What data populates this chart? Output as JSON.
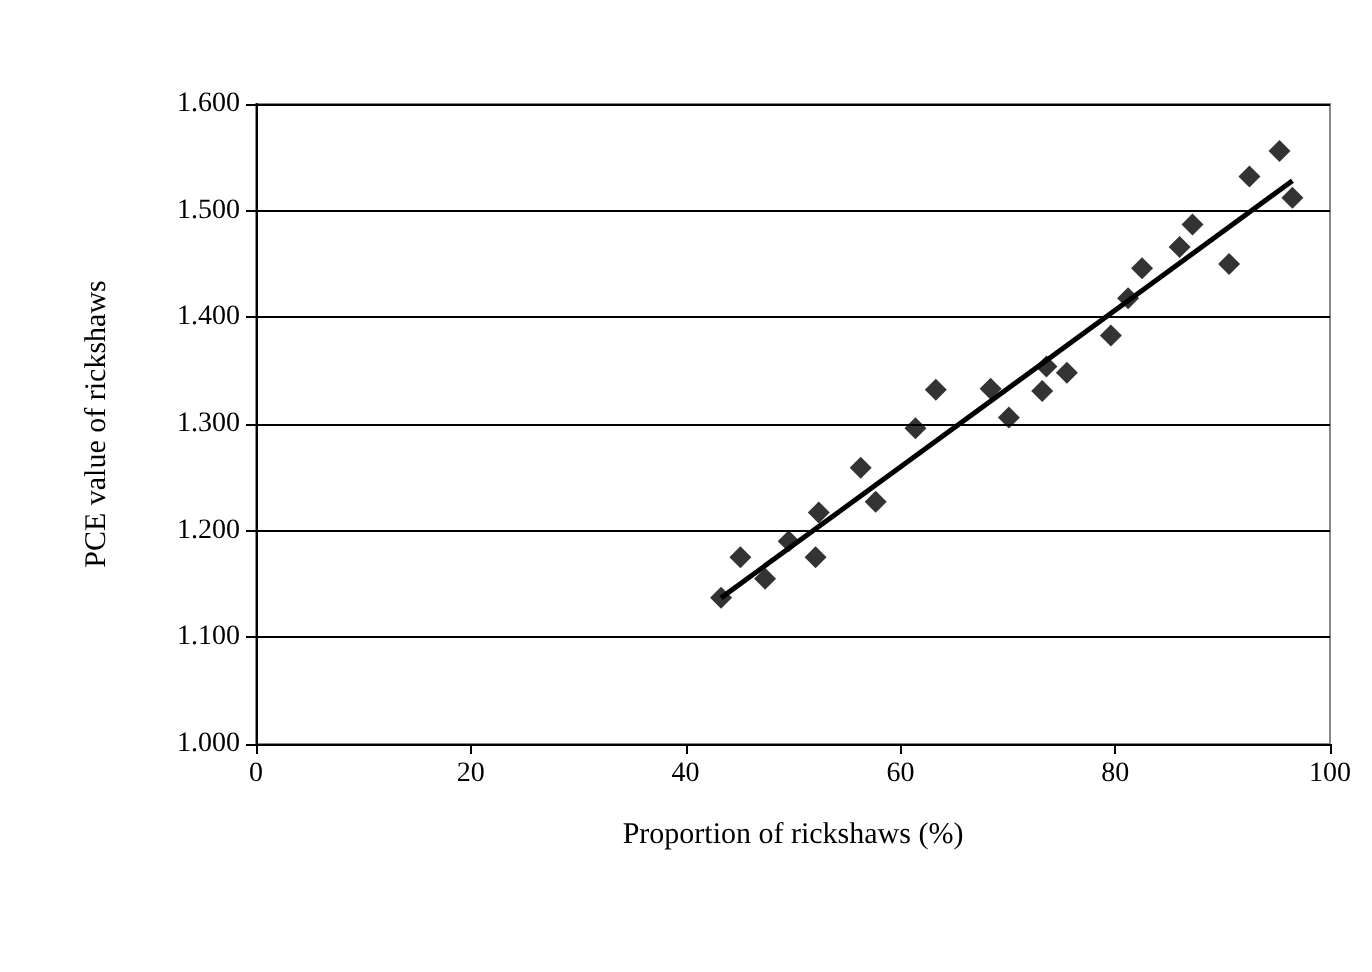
{
  "chart_data": {
    "type": "scatter",
    "xlabel": "Proportion of rickshaws (%)",
    "ylabel": "PCE value of rickshaws",
    "xlim": [
      0,
      100
    ],
    "xticks": [
      0,
      20,
      40,
      60,
      80,
      100
    ],
    "ylim": [
      1,
      1.6
    ],
    "yticks": [
      {
        "value": 1,
        "label": "1.000"
      },
      {
        "value": 1.1,
        "label": "1.100"
      },
      {
        "value": 1.2,
        "label": "1.200"
      },
      {
        "value": 1.3,
        "label": "1.300"
      },
      {
        "value": 1.4,
        "label": "1.400"
      },
      {
        "value": 1.5,
        "label": "1.500"
      },
      {
        "value": 1.6,
        "label": "1.600"
      }
    ],
    "grid": "y",
    "marker": "diamond",
    "series": [
      {
        "color": "#000000",
        "x": [
          43.3,
          45.1,
          47.4,
          49.6,
          52.4,
          52.1,
          56.3,
          57.7,
          61.4,
          63.3,
          68.4,
          70.1,
          73.2,
          73.6,
          75.5,
          79.6,
          81.2,
          82.5,
          86.0,
          87.2,
          90.6,
          92.5,
          95.3,
          96.5
        ],
        "values": [
          1.137,
          1.175,
          1.155,
          1.19,
          1.217,
          1.175,
          1.259,
          1.227,
          1.296,
          1.332,
          1.333,
          1.306,
          1.331,
          1.354,
          1.348,
          1.383,
          1.418,
          1.446,
          1.466,
          1.487,
          1.45,
          1.532,
          1.556,
          1.512
        ]
      },
      {
        "type": "line",
        "color": "#000000",
        "line_style": "solid",
        "marker": "none",
        "x": [
          43.3,
          96.5
        ],
        "values": [
          1.137,
          1.528
        ]
      }
    ]
  }
}
